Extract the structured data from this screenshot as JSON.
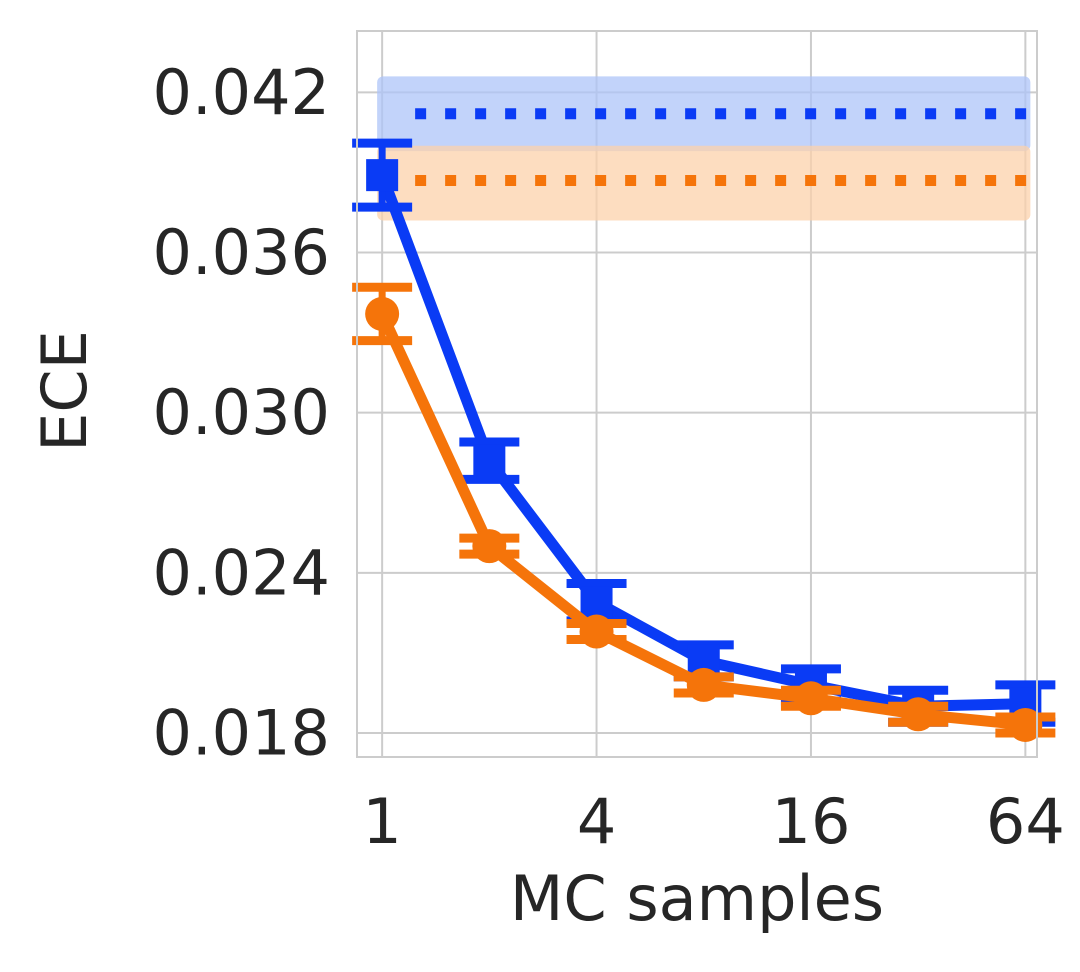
{
  "chart_data": {
    "type": "line",
    "title": "",
    "xlabel": "MC samples",
    "ylabel": "ECE",
    "x_scale": "log2",
    "x": [
      1,
      2,
      4,
      8,
      16,
      32,
      64
    ],
    "xlim": [
      0.85,
      69
    ],
    "ylim": [
      0.0171,
      0.0443
    ],
    "x_ticks": [
      1,
      4,
      16,
      64
    ],
    "x_tick_labels": [
      "1",
      "4",
      "16",
      "64"
    ],
    "y_ticks": [
      0.018,
      0.024,
      0.03,
      0.036,
      0.042
    ],
    "y_tick_labels": [
      "0.018",
      "0.024",
      "0.030",
      "0.036",
      "0.042"
    ],
    "grid": true,
    "legend": "none",
    "series": [
      {
        "color": "#0a3bf5",
        "marker": "square",
        "values": [
          0.0389,
          0.0282,
          0.0229,
          0.0207,
          0.0198,
          0.019,
          0.0191
        ],
        "error": [
          0.0012,
          0.0007,
          0.0007,
          0.0006,
          0.0006,
          0.0006,
          0.0007
        ]
      },
      {
        "color": "#f5740a",
        "marker": "circle",
        "values": [
          0.0337,
          0.025,
          0.0218,
          0.0198,
          0.0193,
          0.0187,
          0.0183
        ],
        "error": [
          0.001,
          0.0003,
          0.0003,
          0.0003,
          0.0003,
          0.0003,
          0.0003
        ]
      }
    ],
    "baselines": [
      {
        "color": "#0a3bf5",
        "fill": "#aec4f8",
        "value": 0.0412,
        "band": [
          0.0398,
          0.0426
        ],
        "style": "dotted"
      },
      {
        "color": "#f5740a",
        "fill": "#fcd1ab",
        "value": 0.0387,
        "band": [
          0.0372,
          0.04
        ],
        "style": "dotted"
      }
    ]
  }
}
